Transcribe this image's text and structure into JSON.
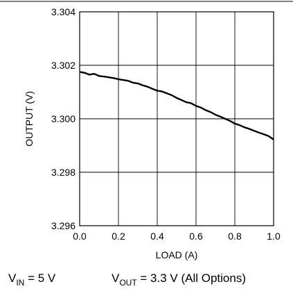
{
  "chart_data": {
    "type": "line",
    "title": "",
    "xlabel": "LOAD (A)",
    "ylabel": "OUTPUT (V)",
    "xlim": [
      0.0,
      1.0
    ],
    "ylim": [
      3.296,
      3.304
    ],
    "x_ticks": [
      "0.0",
      "0.2",
      "0.4",
      "0.6",
      "0.8",
      "1.0"
    ],
    "y_ticks": [
      "3.296",
      "3.298",
      "3.300",
      "3.302",
      "3.304"
    ],
    "grid": true,
    "series": [
      {
        "x": [
          0.0,
          0.025,
          0.05,
          0.075,
          0.1,
          0.125,
          0.15,
          0.175,
          0.2,
          0.225,
          0.25,
          0.275,
          0.3,
          0.325,
          0.35,
          0.375,
          0.4,
          0.425,
          0.45,
          0.475,
          0.5,
          0.525,
          0.55,
          0.575,
          0.6,
          0.625,
          0.65,
          0.675,
          0.7,
          0.725,
          0.75,
          0.775,
          0.8,
          0.825,
          0.85,
          0.875,
          0.9,
          0.925,
          0.95,
          0.975,
          1.0
        ],
        "values": [
          3.30175,
          3.30172,
          3.30165,
          3.30168,
          3.3016,
          3.30158,
          3.30155,
          3.30152,
          3.30148,
          3.30145,
          3.30142,
          3.30135,
          3.30132,
          3.30125,
          3.3012,
          3.30112,
          3.30105,
          3.30102,
          3.30095,
          3.30088,
          3.30078,
          3.3007,
          3.30062,
          3.30058,
          3.30048,
          3.30042,
          3.30032,
          3.30025,
          3.30015,
          3.30008,
          3.3,
          3.29992,
          3.29982,
          3.29976,
          3.29968,
          3.29962,
          3.29955,
          3.29948,
          3.29942,
          3.29935,
          3.29922
        ]
      }
    ]
  },
  "footer": {
    "vin_base": "V",
    "vin_sub": "IN",
    "vin_value": " = 5 V",
    "vout_base": "V",
    "vout_sub": "OUT",
    "vout_value": " = 3.3 V (All Options)"
  }
}
